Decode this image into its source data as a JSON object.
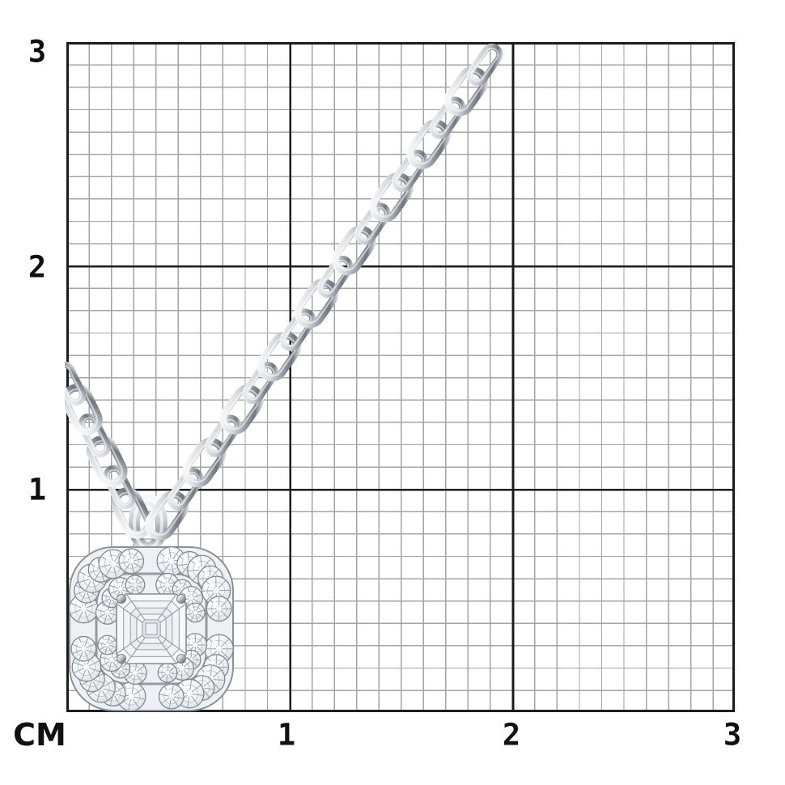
{
  "image": {
    "subject": "White-gold double-halo diamond pendant with square Asscher-cut center stone on a cable-link chain",
    "setting": "Product rendered over a centimeter measurement grid on a white background"
  },
  "ruler": {
    "unit_label": "СМ",
    "left_axis_ticks": [
      "3",
      "2",
      "1"
    ],
    "bottom_axis_ticks": [
      "1",
      "2",
      "3"
    ],
    "minor_cells_per_cm": 10,
    "grid_span_cm": 3
  },
  "measurements": {
    "pendant_width_cm": 0.75,
    "pendant_height_cm": 0.75
  },
  "colors": {
    "background": "#ffffff",
    "grid_minor": "#a4a4a4",
    "grid_major": "#1c1c1c",
    "label": "#111111",
    "metal_highlight": "#fbfcfd",
    "metal_mid": "#c6cbd1",
    "metal_shadow": "#6f757d",
    "diamond_tint": "#f0f3f5"
  }
}
